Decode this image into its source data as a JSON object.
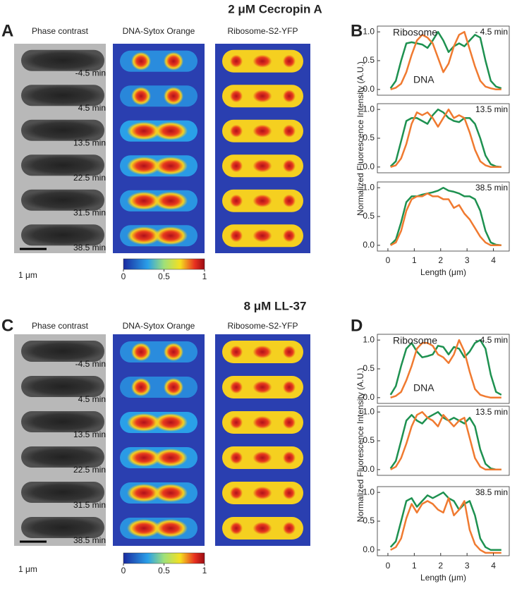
{
  "sections": [
    {
      "title": "2 μM Cecropin A",
      "image_panel": {
        "label": "A",
        "headers": [
          "Phase contrast",
          "DNA-Sytox Orange",
          "Ribosome-S2-YFP"
        ],
        "times": [
          "-4.5 min",
          "4.5 min",
          "13.5 min",
          "22.5 min",
          "31.5 min",
          "38.5 min"
        ],
        "scale_bar": "1 μm",
        "colorbar_ticks": [
          0,
          0.5,
          1
        ]
      },
      "chart_panel": {
        "label": "B",
        "y_label": "Normalized Fluorescence Intensity (A.U.)",
        "x_label": "Length (μm)",
        "xlim": [
          -0.4,
          4.6
        ],
        "xticks": [
          0,
          1,
          2,
          3,
          4
        ],
        "ylim": [
          -0.1,
          1.1
        ],
        "yticks": [
          {
            "value": 0,
            "label": "0.0"
          },
          {
            "value": 0.5,
            "label": "0.5"
          },
          {
            "value": 1,
            "label": "1.0"
          }
        ],
        "series": [
          {
            "name": "Ribosome",
            "color": "#1e9150"
          },
          {
            "name": "DNA",
            "color": "#f07a30"
          }
        ],
        "x": [
          0.1,
          0.3,
          0.5,
          0.7,
          0.9,
          1.1,
          1.3,
          1.5,
          1.7,
          1.9,
          2.1,
          2.3,
          2.5,
          2.7,
          2.9,
          3.1,
          3.3,
          3.5,
          3.7,
          3.9,
          4.1,
          4.3
        ],
        "plots": [
          {
            "time": "- 4.5 min",
            "values": [
              [
                0.02,
                0.15,
                0.5,
                0.8,
                0.82,
                0.8,
                0.78,
                0.72,
                0.85,
                1.0,
                0.85,
                0.65,
                0.75,
                0.8,
                0.75,
                0.85,
                0.95,
                0.9,
                0.5,
                0.15,
                0.05,
                0.02
              ],
              [
                0.0,
                0.03,
                0.1,
                0.3,
                0.6,
                0.85,
                0.95,
                0.9,
                0.8,
                0.55,
                0.3,
                0.45,
                0.75,
                0.95,
                1.0,
                0.7,
                0.4,
                0.15,
                0.05,
                0.02,
                0.0,
                0.0
              ]
            ]
          },
          {
            "time": "13.5 min",
            "values": [
              [
                0.01,
                0.1,
                0.45,
                0.8,
                0.85,
                0.85,
                0.8,
                0.75,
                0.9,
                1.0,
                0.95,
                0.85,
                0.8,
                0.78,
                0.85,
                0.85,
                0.75,
                0.5,
                0.2,
                0.05,
                0.01,
                0.0
              ],
              [
                0.0,
                0.03,
                0.15,
                0.4,
                0.75,
                0.95,
                0.9,
                0.95,
                0.85,
                0.7,
                0.85,
                1.0,
                0.85,
                0.9,
                0.85,
                0.6,
                0.3,
                0.1,
                0.03,
                0.0,
                0.0,
                0.0
              ]
            ]
          },
          {
            "time": "38.5 min",
            "values": [
              [
                0.01,
                0.1,
                0.4,
                0.75,
                0.85,
                0.85,
                0.88,
                0.9,
                0.92,
                0.95,
                1.0,
                0.95,
                0.93,
                0.9,
                0.85,
                0.85,
                0.8,
                0.6,
                0.25,
                0.05,
                0.01,
                0.0
              ],
              [
                0.0,
                0.05,
                0.25,
                0.6,
                0.8,
                0.85,
                0.85,
                0.9,
                0.85,
                0.85,
                0.8,
                0.8,
                0.65,
                0.7,
                0.55,
                0.45,
                0.3,
                0.15,
                0.05,
                0.0,
                0.0,
                0.0
              ]
            ]
          }
        ]
      }
    },
    {
      "title": "8 μM LL-37",
      "image_panel": {
        "label": "C",
        "headers": [
          "Phase contrast",
          "DNA-Sytox Orange",
          "Ribosome-S2-YFP"
        ],
        "times": [
          "-4.5 min",
          "4.5 min",
          "13.5 min",
          "22.5 min",
          "31.5 min",
          "38.5 min"
        ],
        "scale_bar": "1 μm",
        "colorbar_ticks": [
          0,
          0.5,
          1
        ]
      },
      "chart_panel": {
        "label": "D",
        "y_label": "Normalized Fluorescence Intensity (A.U.)",
        "x_label": "Length (μm)",
        "xlim": [
          -0.4,
          4.6
        ],
        "xticks": [
          0,
          1,
          2,
          3,
          4
        ],
        "ylim": [
          -0.1,
          1.1
        ],
        "yticks": [
          {
            "value": 0,
            "label": "0.0"
          },
          {
            "value": 0.5,
            "label": "0.5"
          },
          {
            "value": 1,
            "label": "1.0"
          }
        ],
        "series": [
          {
            "name": "Ribosome",
            "color": "#1e9150"
          },
          {
            "name": "DNA",
            "color": "#f07a30"
          }
        ],
        "x": [
          0.1,
          0.3,
          0.5,
          0.7,
          0.9,
          1.1,
          1.3,
          1.5,
          1.7,
          1.9,
          2.1,
          2.3,
          2.5,
          2.7,
          2.9,
          3.1,
          3.3,
          3.5,
          3.7,
          3.9,
          4.1,
          4.3
        ],
        "plots": [
          {
            "time": "- 4.5 min",
            "values": [
              [
                0.05,
                0.2,
                0.55,
                0.85,
                0.95,
                0.8,
                0.7,
                0.72,
                0.75,
                0.9,
                0.88,
                0.75,
                0.88,
                0.85,
                0.7,
                0.8,
                0.95,
                1.0,
                0.85,
                0.4,
                0.1,
                0.05
              ],
              [
                0.0,
                0.03,
                0.1,
                0.3,
                0.55,
                0.85,
                0.95,
                0.95,
                0.9,
                0.75,
                0.7,
                0.6,
                0.75,
                1.0,
                0.8,
                0.45,
                0.15,
                0.05,
                0.02,
                0.0,
                0.0,
                0.0
              ]
            ]
          },
          {
            "time": "13.5 min",
            "values": [
              [
                0.02,
                0.15,
                0.5,
                0.85,
                0.95,
                0.85,
                0.8,
                0.9,
                0.95,
                1.0,
                0.9,
                0.85,
                0.9,
                0.85,
                0.8,
                0.9,
                0.75,
                0.35,
                0.1,
                0.02,
                0.0,
                0.0
              ],
              [
                0.0,
                0.05,
                0.2,
                0.45,
                0.75,
                0.95,
                1.0,
                0.9,
                0.85,
                0.75,
                0.95,
                0.85,
                0.75,
                0.85,
                0.9,
                0.55,
                0.2,
                0.05,
                0.0,
                0.0,
                0.0,
                0.0
              ]
            ]
          },
          {
            "time": "38.5 min",
            "values": [
              [
                0.05,
                0.15,
                0.5,
                0.85,
                0.9,
                0.75,
                0.85,
                0.95,
                0.9,
                0.95,
                1.0,
                0.9,
                0.85,
                0.7,
                0.8,
                0.85,
                0.6,
                0.2,
                0.05,
                0.0,
                0.0,
                0.0
              ],
              [
                0.0,
                0.05,
                0.2,
                0.55,
                0.8,
                0.65,
                0.8,
                0.85,
                0.8,
                0.7,
                0.65,
                0.9,
                0.6,
                0.7,
                0.85,
                0.35,
                0.1,
                0.0,
                -0.05,
                -0.05,
                -0.05,
                -0.05
              ]
            ]
          }
        ]
      }
    }
  ]
}
